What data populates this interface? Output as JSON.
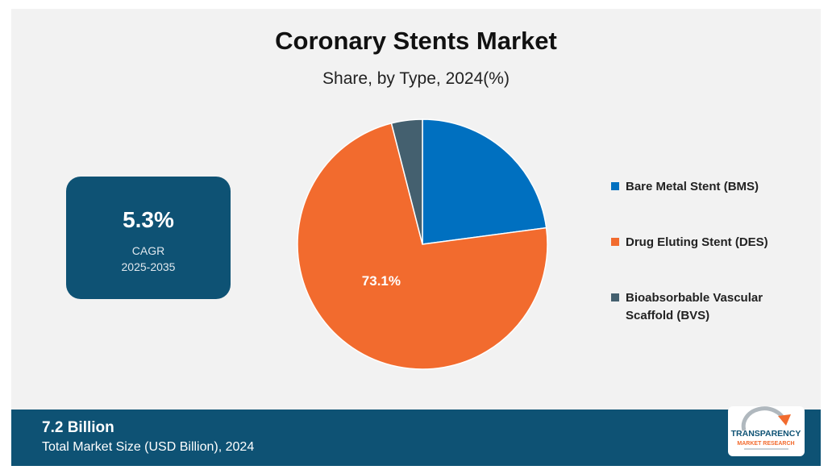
{
  "title": "Coronary Stents Market",
  "subtitle": "Share, by Type, 2024(%)",
  "cagr": {
    "value": "5.3%",
    "label": "CAGR",
    "period": "2025-2035"
  },
  "chart_data": {
    "type": "pie",
    "title": "Coronary Stents Market",
    "subtitle": "Share, by Type, 2024(%)",
    "slices": [
      {
        "name": "Bare Metal Stent (BMS)",
        "value": 22.9,
        "color": "#0070c0",
        "label": ""
      },
      {
        "name": "Drug Eluting Stent (DES)",
        "value": 73.1,
        "color": "#f26b2e",
        "label": "73.1%"
      },
      {
        "name": "Bioabsorbable Vascular Scaffold (BVS)",
        "value": 4.0,
        "color": "#44606f",
        "label": ""
      }
    ],
    "legend_position": "right"
  },
  "footer": {
    "value": "7.2 Billion",
    "label": "Total Market Size (USD Billion), 2024"
  },
  "logo": {
    "name": "TRANSPARENCY",
    "sub": "MARKET RESEARCH"
  }
}
